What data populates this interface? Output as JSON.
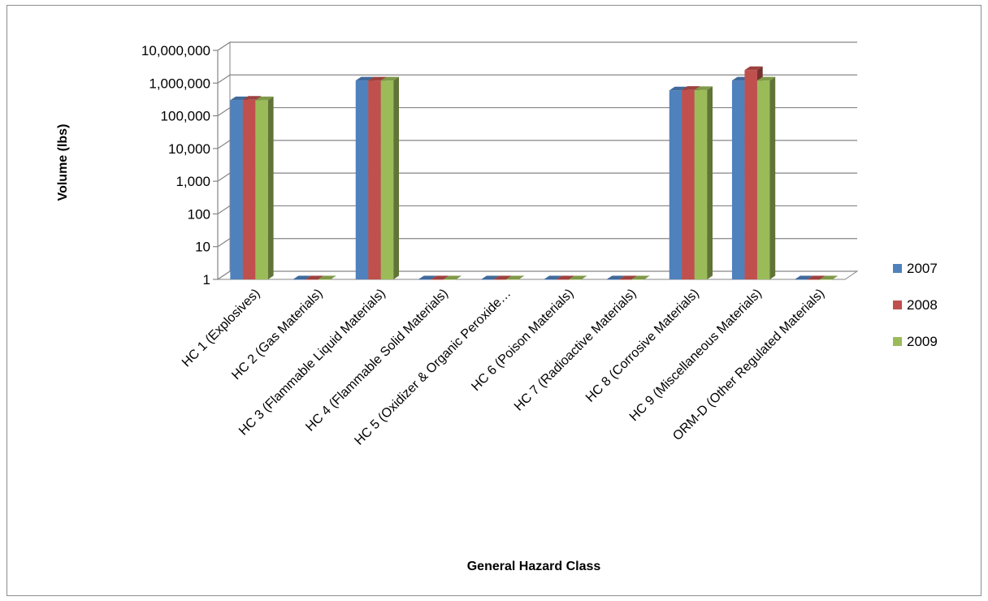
{
  "chart_data": {
    "type": "bar",
    "style": "3d-clustered-column",
    "title": "",
    "xlabel": "General Hazard Class",
    "ylabel": "Volume (lbs)",
    "yscale": "log",
    "ylim": [
      1,
      10000000
    ],
    "yticks": [
      "1",
      "10",
      "100",
      "1,000",
      "10,000",
      "100,000",
      "1,000,000",
      "10,000,000"
    ],
    "grid": true,
    "legend": "right",
    "categories": [
      "HC 1 (Explosives)",
      "HC 2 (Gas Materials)",
      "HC 3 (Flammable Liquid Materials)",
      "HC 4 (Flammable Solid Materials)",
      "HC 5 (Oxidizer & Organic Peroxide…",
      "HC 6 (Poison Materials)",
      "HC 7 (Radioactive Materials)",
      "HC 8 (Corrosive Materials)",
      "HC 9 (Miscellaneous Materials)",
      "ORM-D (Other Regulated Materials)"
    ],
    "series": [
      {
        "name": "2007",
        "color": "#4F81BD",
        "values": [
          300000,
          1,
          1200000,
          1,
          1,
          1,
          1,
          600000,
          1200000,
          1
        ]
      },
      {
        "name": "2008",
        "color": "#C0504D",
        "values": [
          310000,
          1,
          1200000,
          1,
          1,
          1,
          1,
          620000,
          2500000,
          1
        ]
      },
      {
        "name": "2009",
        "color": "#9BBB59",
        "values": [
          300000,
          1,
          1200000,
          1,
          1,
          1,
          1,
          610000,
          1200000,
          1
        ]
      }
    ]
  }
}
